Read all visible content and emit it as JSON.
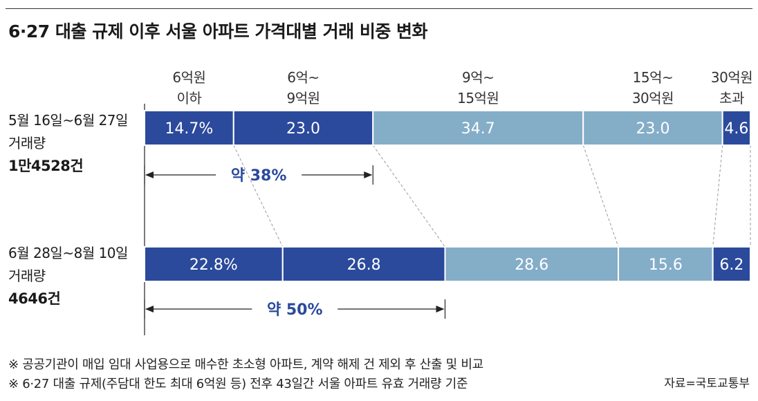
{
  "title": "6·27 대출 규제 이후 서울 아파트 가격대별 거래 비중 변화",
  "chart_data": {
    "type": "bar",
    "stacked": true,
    "orientation": "horizontal",
    "unit": "%",
    "categories": [
      {
        "line1": "6억원",
        "line2": "이하"
      },
      {
        "line1": "6억~",
        "line2": "9억원"
      },
      {
        "line1": "9억~",
        "line2": "15억원"
      },
      {
        "line1": "15억~",
        "line2": "30억원"
      },
      {
        "line1": "30억원",
        "line2": "초과"
      }
    ],
    "colors": [
      "#2b4a9c",
      "#2b4a9c",
      "#84adc8",
      "#84adc8",
      "#2b4a9c"
    ],
    "rows": [
      {
        "period": "5월 16일~6월 27일",
        "label": "거래량",
        "count": "1만4528건",
        "values": [
          14.7,
          23.0,
          34.7,
          23.0,
          4.6
        ],
        "value_labels": [
          "14.7%",
          "23.0",
          "34.7",
          "23.0",
          "4.6"
        ],
        "bracket_label": "약 38%",
        "bracket_span": 2
      },
      {
        "period": "6월 28일~8월 10일",
        "label": "거래량",
        "count": "4646건",
        "values": [
          22.8,
          26.8,
          28.6,
          15.6,
          6.2
        ],
        "value_labels": [
          "22.8%",
          "26.8",
          "28.6",
          "15.6",
          "6.2"
        ],
        "bracket_label": "약 50%",
        "bracket_span": 2
      }
    ]
  },
  "notes": [
    "※ 공공기관이 매입 임대 사업용으로 매수한 초소형 아파트, 계약 해제 건 제외 후 산출 및 비교",
    "※ 6·27 대출 규제(주담대 한도 최대 6억원 등) 전후 43일간 서울 아파트 유효 거래량 기준"
  ],
  "source": "자료=국토교통부"
}
